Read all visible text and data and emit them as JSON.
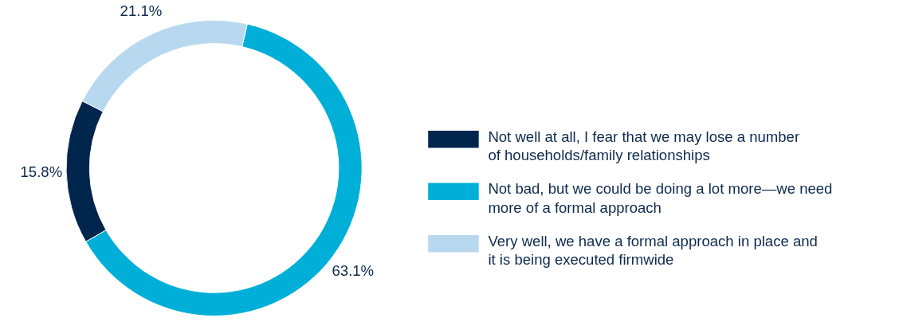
{
  "chart_data": {
    "type": "donut",
    "categories": [
      "Not well at all, I fear that we may lose a number of households/family relationships",
      "Not bad, but we could be doing a lot more—we need more of a formal approach",
      "Very well, we have a formal approach in place and it is being executed firmwide"
    ],
    "values": [
      15.8,
      63.1,
      21.1
    ],
    "colors": [
      "#00264d",
      "#00afd8",
      "#b8d8f0"
    ],
    "value_labels": [
      "15.8%",
      "63.1%",
      "21.1%"
    ],
    "legend": "right"
  }
}
